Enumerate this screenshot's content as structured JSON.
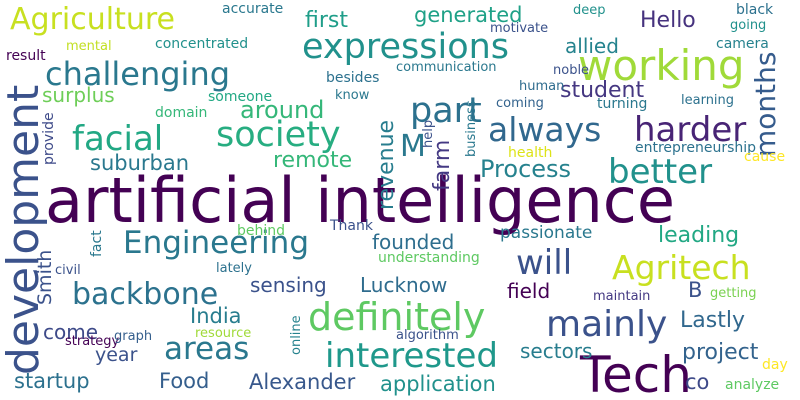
{
  "words": [
    {
      "text": "artificial intelligence",
      "color": "#440154",
      "vertical": false
    },
    {
      "text": "Tech",
      "color": "#440154",
      "vertical": false
    },
    {
      "text": "development",
      "color": "#3b528b",
      "vertical": true
    },
    {
      "text": "working",
      "color": "#a0da39",
      "vertical": false
    },
    {
      "text": "expressions",
      "color": "#21918c",
      "vertical": false
    },
    {
      "text": "challenging",
      "color": "#2a788e",
      "vertical": false
    },
    {
      "text": "Agriculture",
      "color": "#c8e020",
      "vertical": false
    },
    {
      "text": "society",
      "color": "#27ad81",
      "vertical": false
    },
    {
      "text": "facial",
      "color": "#22a884",
      "vertical": false
    },
    {
      "text": "always",
      "color": "#31688e",
      "vertical": false
    },
    {
      "text": "harder",
      "color": "#482475",
      "vertical": false
    },
    {
      "text": "part",
      "color": "#2c718e",
      "vertical": false
    },
    {
      "text": "better",
      "color": "#21918c",
      "vertical": false
    },
    {
      "text": "definitely",
      "color": "#5ec962",
      "vertical": false
    },
    {
      "text": "mainly",
      "color": "#3b528b",
      "vertical": false
    },
    {
      "text": "interested",
      "color": "#1f988b",
      "vertical": false
    },
    {
      "text": "Engineering",
      "color": "#2a788e",
      "vertical": false
    },
    {
      "text": "backbone",
      "color": "#2c728e",
      "vertical": false
    },
    {
      "text": "Agritech",
      "color": "#c8e020",
      "vertical": false
    },
    {
      "text": "will",
      "color": "#3b528b",
      "vertical": false
    },
    {
      "text": "areas",
      "color": "#2a788e",
      "vertical": false
    },
    {
      "text": "around",
      "color": "#35b779",
      "vertical": false
    },
    {
      "text": "months",
      "color": "#365c8d",
      "vertical": true
    },
    {
      "text": "revenue",
      "color": "#287d8e",
      "vertical": true
    },
    {
      "text": "farm",
      "color": "#443983",
      "vertical": true
    },
    {
      "text": "Process",
      "color": "#26828e",
      "vertical": false
    },
    {
      "text": "student",
      "color": "#453781",
      "vertical": false
    },
    {
      "text": "allied",
      "color": "#25838e",
      "vertical": false
    },
    {
      "text": "generated",
      "color": "#1fa187",
      "vertical": false
    },
    {
      "text": "Hello",
      "color": "#46327e",
      "vertical": false
    },
    {
      "text": "first",
      "color": "#1f9e89",
      "vertical": false
    },
    {
      "text": "M",
      "color": "#2a788e",
      "vertical": false
    },
    {
      "text": "surplus",
      "color": "#6ece58",
      "vertical": false
    },
    {
      "text": "remote",
      "color": "#35b779",
      "vertical": false
    },
    {
      "text": "suburban",
      "color": "#2a788e",
      "vertical": false
    },
    {
      "text": "founded",
      "color": "#2e6e8e",
      "vertical": false
    },
    {
      "text": "leading",
      "color": "#22a884",
      "vertical": false
    },
    {
      "text": "sensing",
      "color": "#3b528b",
      "vertical": false
    },
    {
      "text": "Lucknow",
      "color": "#2f6c8e",
      "vertical": false
    },
    {
      "text": "field",
      "color": "#440154",
      "vertical": false
    },
    {
      "text": "B",
      "color": "#3b528b",
      "vertical": false
    },
    {
      "text": "India",
      "color": "#287d8e",
      "vertical": false
    },
    {
      "text": "come",
      "color": "#3e4a89",
      "vertical": false
    },
    {
      "text": "Lastly",
      "color": "#31688e",
      "vertical": false
    },
    {
      "text": "sectors",
      "color": "#287d8e",
      "vertical": false
    },
    {
      "text": "project",
      "color": "#33638d",
      "vertical": false
    },
    {
      "text": "year",
      "color": "#3b528b",
      "vertical": false
    },
    {
      "text": "startup",
      "color": "#2c718e",
      "vertical": false
    },
    {
      "text": "Food",
      "color": "#355f8d",
      "vertical": false
    },
    {
      "text": "Alexander",
      "color": "#38588c",
      "vertical": false
    },
    {
      "text": "application",
      "color": "#21918c",
      "vertical": false
    },
    {
      "text": "co",
      "color": "#3e4a89",
      "vertical": false
    },
    {
      "text": "Smith",
      "color": "#3b528b",
      "vertical": true
    },
    {
      "text": "passionate",
      "color": "#2a788e",
      "vertical": false
    },
    {
      "text": "entrepreneurship",
      "color": "#2c728e",
      "vertical": false
    },
    {
      "text": "understanding",
      "color": "#5ec962",
      "vertical": false
    },
    {
      "text": "maintain",
      "color": "#443983",
      "vertical": false
    },
    {
      "text": "getting",
      "color": "#7ad151",
      "vertical": false
    },
    {
      "text": "accurate",
      "color": "#2a788e",
      "vertical": false
    },
    {
      "text": "deep",
      "color": "#21918c",
      "vertical": false
    },
    {
      "text": "black",
      "color": "#2c718e",
      "vertical": false
    },
    {
      "text": "going",
      "color": "#21918c",
      "vertical": false
    },
    {
      "text": "camera",
      "color": "#26828e",
      "vertical": false
    },
    {
      "text": "motivate",
      "color": "#3b528b",
      "vertical": false
    },
    {
      "text": "concentrated",
      "color": "#21918c",
      "vertical": false
    },
    {
      "text": "mental",
      "color": "#c2df23",
      "vertical": false
    },
    {
      "text": "result",
      "color": "#440154",
      "vertical": false
    },
    {
      "text": "communication",
      "color": "#2a788e",
      "vertical": false
    },
    {
      "text": "noble",
      "color": "#3b528b",
      "vertical": false
    },
    {
      "text": "besides",
      "color": "#2c718e",
      "vertical": false
    },
    {
      "text": "human",
      "color": "#2f6c8e",
      "vertical": false
    },
    {
      "text": "coming",
      "color": "#33638d",
      "vertical": false
    },
    {
      "text": "turning",
      "color": "#2a788e",
      "vertical": false
    },
    {
      "text": "learning",
      "color": "#2c718e",
      "vertical": false
    },
    {
      "text": "someone",
      "color": "#22a884",
      "vertical": false
    },
    {
      "text": "know",
      "color": "#2a788e",
      "vertical": false
    },
    {
      "text": "domain",
      "color": "#35b779",
      "vertical": false
    },
    {
      "text": "provide",
      "color": "#3e4a89",
      "vertical": true
    },
    {
      "text": "fact",
      "color": "#2a788e",
      "vertical": true
    },
    {
      "text": "help",
      "color": "#3b528b",
      "vertical": true
    },
    {
      "text": "business",
      "color": "#2a788e",
      "vertical": true
    },
    {
      "text": "health",
      "color": "#dde318",
      "vertical": false
    },
    {
      "text": "cause",
      "color": "#fde725",
      "vertical": false
    },
    {
      "text": "day",
      "color": "#fde725",
      "vertical": false
    },
    {
      "text": "analyze",
      "color": "#5ec962",
      "vertical": false
    },
    {
      "text": "Thank",
      "color": "#3b528b",
      "vertical": false
    },
    {
      "text": "behind",
      "color": "#5ec962",
      "vertical": false
    },
    {
      "text": "civil",
      "color": "#3b528b",
      "vertical": false
    },
    {
      "text": "lately",
      "color": "#2c718e",
      "vertical": false
    },
    {
      "text": "strategy",
      "color": "#440154",
      "vertical": false
    },
    {
      "text": "graph",
      "color": "#355f8d",
      "vertical": false
    },
    {
      "text": "resource",
      "color": "#a0da39",
      "vertical": false
    },
    {
      "text": "online",
      "color": "#26828e",
      "vertical": true
    },
    {
      "text": "algorithm",
      "color": "#3b528b",
      "vertical": false
    }
  ]
}
